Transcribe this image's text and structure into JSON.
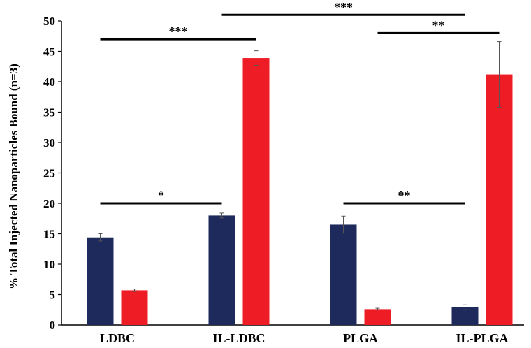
{
  "chart_data": {
    "type": "bar",
    "title": "",
    "xlabel": "",
    "ylabel": "% Total Injected Nanoparticles Bound (n=3)",
    "ylim": [
      0,
      50
    ],
    "yticks": [
      0,
      5,
      10,
      15,
      20,
      25,
      30,
      35,
      40,
      45,
      50
    ],
    "grid": false,
    "legend": "none",
    "categories": [
      "LDBC",
      "IL-LDBC",
      "PLGA",
      "IL-PLGA"
    ],
    "series": [
      {
        "color": "#1f2a5c",
        "values": [
          14.4,
          18.0,
          16.5,
          2.9
        ],
        "errors": [
          0.6,
          0.4,
          1.4,
          0.4
        ]
      },
      {
        "color": "#ee1c24",
        "values": [
          5.7,
          43.9,
          2.6,
          41.2
        ],
        "errors": [
          0.2,
          1.2,
          0.15,
          5.4
        ]
      }
    ],
    "significance": [
      {
        "from": {
          "category": 0,
          "series": 0
        },
        "to": {
          "category": 1,
          "series": 0
        },
        "y": 20,
        "label": "*"
      },
      {
        "from": {
          "category": 0,
          "series": 0
        },
        "to": {
          "category": 1,
          "series": 1
        },
        "y": 47,
        "label": "***"
      },
      {
        "from": {
          "category": 1,
          "series": 0
        },
        "to": {
          "category": 3,
          "series": 0
        },
        "y": 51,
        "label": "***"
      },
      {
        "from": {
          "category": 2,
          "series": 0
        },
        "to": {
          "category": 3,
          "series": 0
        },
        "y": 20,
        "label": "**"
      },
      {
        "from": {
          "category": 2,
          "series": 1
        },
        "to": {
          "category": 3,
          "series": 1
        },
        "y": 48,
        "label": "**"
      }
    ]
  }
}
